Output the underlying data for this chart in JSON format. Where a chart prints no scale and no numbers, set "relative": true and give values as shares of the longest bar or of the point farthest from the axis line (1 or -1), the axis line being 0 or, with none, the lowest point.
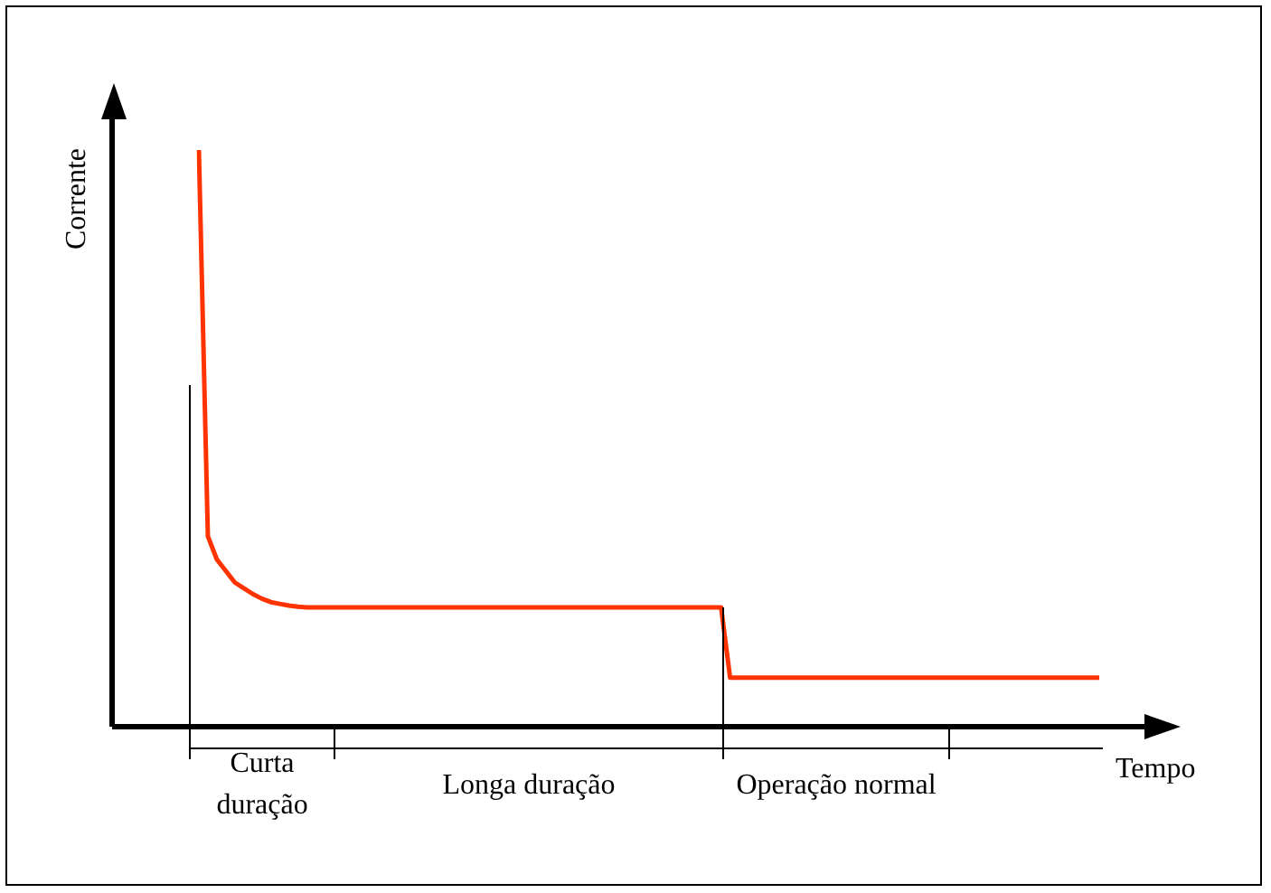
{
  "chart_data": {
    "type": "line",
    "relative": true,
    "xlabel": "Tempo",
    "ylabel": "Corrente",
    "categories": [
      null,
      null,
      null,
      null,
      null,
      null,
      null,
      null,
      null,
      null,
      null,
      null,
      null,
      null,
      null,
      null,
      null,
      null,
      null,
      null,
      null,
      null,
      null,
      null,
      null,
      null,
      null,
      null,
      null,
      null,
      null,
      null,
      null,
      null,
      null,
      null,
      null,
      null,
      null,
      null,
      null,
      null,
      null,
      null,
      null,
      null,
      null,
      null,
      null,
      null,
      null,
      null,
      null,
      null,
      null,
      null,
      null,
      null,
      null,
      null,
      null,
      null,
      null,
      null,
      null,
      null,
      null,
      null,
      null,
      null,
      null,
      null,
      null,
      null,
      null,
      null,
      null,
      null,
      null,
      null,
      null,
      null,
      null,
      null,
      null,
      null,
      null,
      null,
      null,
      null,
      null,
      null,
      null,
      null,
      null,
      null,
      null,
      null,
      null,
      null,
      null
    ],
    "series": [
      {
        "color": "#ff3300",
        "values": [
          1,
          0.33,
          0.29,
          0.27,
          0.25,
          0.24,
          0.23,
          0.222,
          0.216,
          0.213,
          0.21,
          0.208,
          0.207,
          0.207,
          0.207,
          0.207,
          0.207,
          0.207,
          0.207,
          0.207,
          0.207,
          0.207,
          0.207,
          0.207,
          0.207,
          0.207,
          0.207,
          0.207,
          0.207,
          0.207,
          0.207,
          0.207,
          0.207,
          0.207,
          0.207,
          0.207,
          0.207,
          0.207,
          0.207,
          0.207,
          0.207,
          0.207,
          0.207,
          0.207,
          0.207,
          0.207,
          0.207,
          0.207,
          0.207,
          0.207,
          0.207,
          0.207,
          0.207,
          0.207,
          0.207,
          0.207,
          0.207,
          0.207,
          0.207,
          0.085,
          0.085,
          0.085,
          0.085,
          0.085,
          0.085,
          0.085,
          0.085,
          0.085,
          0.085,
          0.085,
          0.085,
          0.085,
          0.085,
          0.085,
          0.085,
          0.085,
          0.085,
          0.085,
          0.085,
          0.085,
          0.085,
          0.085,
          0.085,
          0.085,
          0.085,
          0.085,
          0.085,
          0.085,
          0.085,
          0.085,
          0.085,
          0.085,
          0.085,
          0.085,
          0.085,
          0.085,
          0.085,
          0.085,
          0.085,
          0.085,
          0.085
        ]
      }
    ],
    "annotations": [
      "Curta duração",
      "Longa duração",
      "Operação normal"
    ],
    "legend": false,
    "marker": "none",
    "line_style": "solid"
  }
}
